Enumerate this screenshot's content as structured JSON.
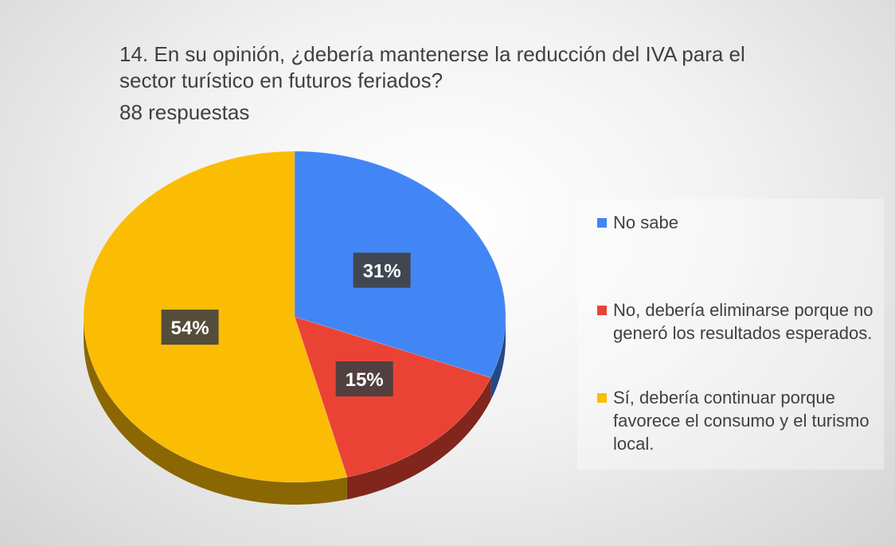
{
  "chart_data": {
    "type": "pie",
    "title": "14. En su opinión, ¿debería mantenerse la reducción del IVA para el sector turístico en futuros feriados?",
    "subtitle": "88 respuestas",
    "categories": [
      "No sabe",
      "No, debería eliminarse porque no generó los resultados esperados.",
      "Sí, debería continuar porque favorece el consumo y el turismo local."
    ],
    "values": [
      31,
      15,
      54
    ],
    "value_labels": [
      "31%",
      "15%",
      "54%"
    ],
    "colors": [
      "#4285f4",
      "#ea4335",
      "#fbbc04"
    ],
    "legend": "right"
  }
}
